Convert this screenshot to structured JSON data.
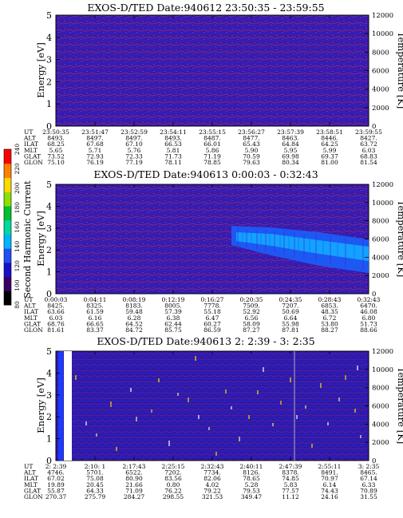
{
  "panels": [
    {
      "title": "EXOS-D/TED  Date:940612  23:50:35 - 23:59:55",
      "y_label": "Energy [eV]",
      "y2_label": "Temperature [K]",
      "rows": [
        {
          "label": "UT",
          "values": [
            "23:50:35",
            "23:51:47",
            "23:52:59",
            "23:54:11",
            "23:55:15",
            "23:56:27",
            "23:57:39",
            "23:58:51",
            "23:59:55"
          ]
        },
        {
          "label": "ALT",
          "values": [
            "8493.",
            "8497.",
            "8497.",
            "8493.",
            "8487.",
            "8477.",
            "8463.",
            "8446.",
            "8427."
          ]
        },
        {
          "label": "ILAT",
          "values": [
            "68.25",
            "67.68",
            "67.10",
            "66.53",
            "66.01",
            "65.43",
            "64.84",
            "64.25",
            "63.72"
          ]
        },
        {
          "label": "MLT",
          "values": [
            "5.65",
            "5.71",
            "5.76",
            "5.81",
            "5.86",
            "5.90",
            "5.95",
            "5.99",
            "6.03"
          ]
        },
        {
          "label": "GLAT",
          "values": [
            "73.52",
            "72.93",
            "72.33",
            "71.73",
            "71.19",
            "70.59",
            "69.98",
            "69.37",
            "68.83"
          ]
        },
        {
          "label": "GLON",
          "values": [
            "75.10",
            "76.19",
            "77.19",
            "78.11",
            "78.85",
            "79.63",
            "80.34",
            "81.00",
            "81.54"
          ]
        }
      ]
    },
    {
      "title": "EXOS-D/TED   Date:940613  0:00:03 - 0:32:43",
      "y_label": "Energy [eV]",
      "y2_label": "Temperature [K]",
      "rows": [
        {
          "label": "UT",
          "values": [
            "0:00:03",
            "0:04:11",
            "0:08:19",
            "0:12:19",
            "0:16:27",
            "0:20:35",
            "0:24:35",
            "0:28:43",
            "0:32:43"
          ]
        },
        {
          "label": "ALT",
          "values": [
            "8425.",
            "8325.",
            "8183.",
            "8005.",
            "7778.",
            "7509.",
            "7207.",
            "6853.",
            "6470."
          ]
        },
        {
          "label": "ILAT",
          "values": [
            "63.66",
            "61.59",
            "59.48",
            "57.39",
            "55.18",
            "52.92",
            "50.69",
            "48.35",
            "46.08"
          ]
        },
        {
          "label": "MLT",
          "values": [
            "6.03",
            "6.16",
            "6.28",
            "6.38",
            "6.47",
            "6.56",
            "6.64",
            "6.72",
            "6.80"
          ]
        },
        {
          "label": "GLAT",
          "values": [
            "68.76",
            "66.65",
            "64.52",
            "62.44",
            "60.27",
            "58.09",
            "55.98",
            "53.80",
            "51.73"
          ]
        },
        {
          "label": "GLON",
          "values": [
            "81.61",
            "83.37",
            "84.72",
            "85.75",
            "86.59",
            "87.27",
            "87.81",
            "88.27",
            "88.66"
          ]
        }
      ]
    },
    {
      "title": "EXOS-D/TED   Date:940613  2: 2:39 - 3: 2:35",
      "y_label": "Energy [eV]",
      "y2_label": "Temperature [K]",
      "rows": [
        {
          "label": "UT",
          "values": [
            "2: 2:39",
            "2:10: 1",
            "2:17:43",
            "2:25:15",
            "2:32:43",
            "2:40:11",
            "2:47:39",
            "2:55:11",
            "3: 2:35"
          ]
        },
        {
          "label": "ALT",
          "values": [
            "4746.",
            "5701.",
            "6522.",
            "7202.",
            "7734.",
            "8126.",
            "8378.",
            "8491.",
            "8465."
          ]
        },
        {
          "label": "ILAT",
          "values": [
            "67.02",
            "75.08",
            "80.90",
            "83.56",
            "82.06",
            "78.65",
            "74.85",
            "70.97",
            "67.14"
          ]
        },
        {
          "label": "MLT",
          "values": [
            "19.89",
            "20.45",
            "21.66",
            "0.80",
            "4.02",
            "5.28",
            "5.83",
            "6.14",
            "6.33"
          ]
        },
        {
          "label": "GLAT",
          "values": [
            "55.87",
            "64.33",
            "71.09",
            "76.22",
            "79.22",
            "79.53",
            "77.57",
            "74.43",
            "70.89"
          ]
        },
        {
          "label": "GLON",
          "values": [
            "270.37",
            "275.79",
            "284.27",
            "298.55",
            "321.53",
            "349.47",
            "11.12",
            "24.16",
            "31.55"
          ]
        }
      ]
    }
  ],
  "colorbar": {
    "label": "Second Harmonic Current",
    "ticks": [
      "80",
      "100",
      "120",
      "140",
      "160",
      "180",
      "200",
      "220",
      "240"
    ],
    "colors": [
      "#000000",
      "#3a0066",
      "#1a10c8",
      "#1f4ff5",
      "#00b4ff",
      "#00d9a0",
      "#00c030",
      "#8fe000",
      "#ffd800",
      "#ff8000",
      "#ff0000"
    ]
  },
  "chart_data": [
    {
      "type": "heatmap",
      "title": "EXOS-D/TED  Date:940612  23:50:35 - 23:59:55",
      "ylabel": "Energy [eV]",
      "ylim": [
        0,
        5
      ],
      "y_ticks": [
        0,
        1,
        2,
        3,
        4,
        5
      ],
      "y2label": "Temperature [K]",
      "y2lim": [
        0,
        12000
      ],
      "y2_ticks": [
        0,
        2000,
        4000,
        6000,
        8000,
        10000,
        12000
      ],
      "x_ticks": [
        "23:50:35",
        "23:51:47",
        "23:52:59",
        "23:54:11",
        "23:55:15",
        "23:56:27",
        "23:57:39",
        "23:58:51",
        "23:59:55"
      ],
      "zlim": [
        80,
        240
      ],
      "background_level": 110
    },
    {
      "type": "heatmap",
      "title": "EXOS-D/TED   Date:940613  0:00:03 - 0:32:43",
      "ylabel": "Energy [eV]",
      "ylim": [
        0,
        5
      ],
      "y_ticks": [
        0,
        1,
        2,
        3,
        4,
        5
      ],
      "y2label": "Temperature [K]",
      "y2lim": [
        0,
        12000
      ],
      "y2_ticks": [
        0,
        2000,
        4000,
        6000,
        8000,
        10000,
        12000
      ],
      "x_ticks": [
        "0:00:03",
        "0:04:11",
        "0:08:19",
        "0:12:19",
        "0:16:27",
        "0:20:35",
        "0:24:35",
        "0:28:43",
        "0:32:43"
      ],
      "zlim": [
        80,
        240
      ],
      "background_level": 110,
      "enhanced_band": {
        "level": 150,
        "ut_start": "0:19:10",
        "ut_end": "0:32:43",
        "energy_top_start": 2.2,
        "energy_bottom_start": 1.7,
        "energy_top_end": 1.3,
        "energy_bottom_end": 0.6
      }
    },
    {
      "type": "heatmap",
      "title": "EXOS-D/TED   Date:940613  2: 2:39 - 3: 2:35",
      "ylabel": "Energy [eV]",
      "ylim": [
        0,
        5
      ],
      "y_ticks": [
        0,
        1,
        2,
        3,
        4,
        5
      ],
      "y2label": "Temperature [K]",
      "y2lim": [
        0,
        12000
      ],
      "y2_ticks": [
        0,
        2000,
        4000,
        6000,
        8000,
        10000,
        12000
      ],
      "x_ticks": [
        "2: 2:39",
        "2:10: 1",
        "2:17:43",
        "2:25:15",
        "2:32:43",
        "2:40:11",
        "2:47:39",
        "2:55:11",
        "3: 2:35"
      ],
      "zlim": [
        80,
        240
      ],
      "background_level": 100,
      "saturated_columns": [
        {
          "ut_start": "2: 2:45",
          "ut_end": "2: 3:50"
        }
      ],
      "sparse_spikes": true
    }
  ]
}
